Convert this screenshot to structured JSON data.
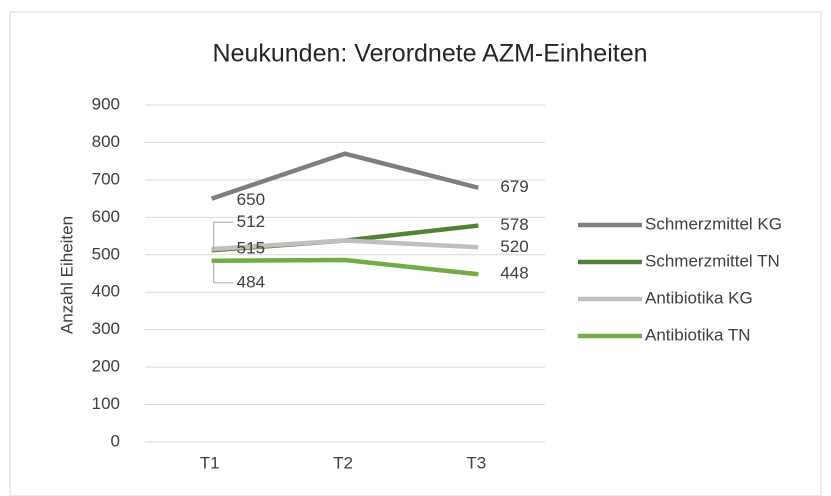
{
  "chart_data": {
    "type": "line",
    "title": "Neukunden: Verordnete AZM-Einheiten",
    "y_label": "Anzahl Eiheiten",
    "categories": [
      "T1",
      "T2",
      "T3"
    ],
    "series": [
      {
        "name": "Schmerzmittel KG",
        "color": "#7f7f7f",
        "values": [
          650,
          770,
          679
        ],
        "value_labels": [
          "650",
          null,
          "679"
        ]
      },
      {
        "name": "Schmerzmittel TN",
        "color": "#548235",
        "values": [
          512,
          538,
          578
        ],
        "value_labels": [
          "512",
          null,
          "578"
        ]
      },
      {
        "name": "Antibiotika KG",
        "color": "#bfbfbf",
        "values": [
          515,
          538,
          520
        ],
        "value_labels": [
          "515",
          null,
          "520"
        ]
      },
      {
        "name": "Antibiotika TN",
        "color": "#70ad47",
        "values": [
          484,
          486,
          448
        ],
        "value_labels": [
          "484",
          null,
          "448"
        ]
      }
    ],
    "ylim": [
      0,
      900
    ],
    "yticks": [
      0,
      100,
      200,
      300,
      400,
      500,
      600,
      700,
      800,
      900
    ],
    "grid": true,
    "legend": "right"
  }
}
